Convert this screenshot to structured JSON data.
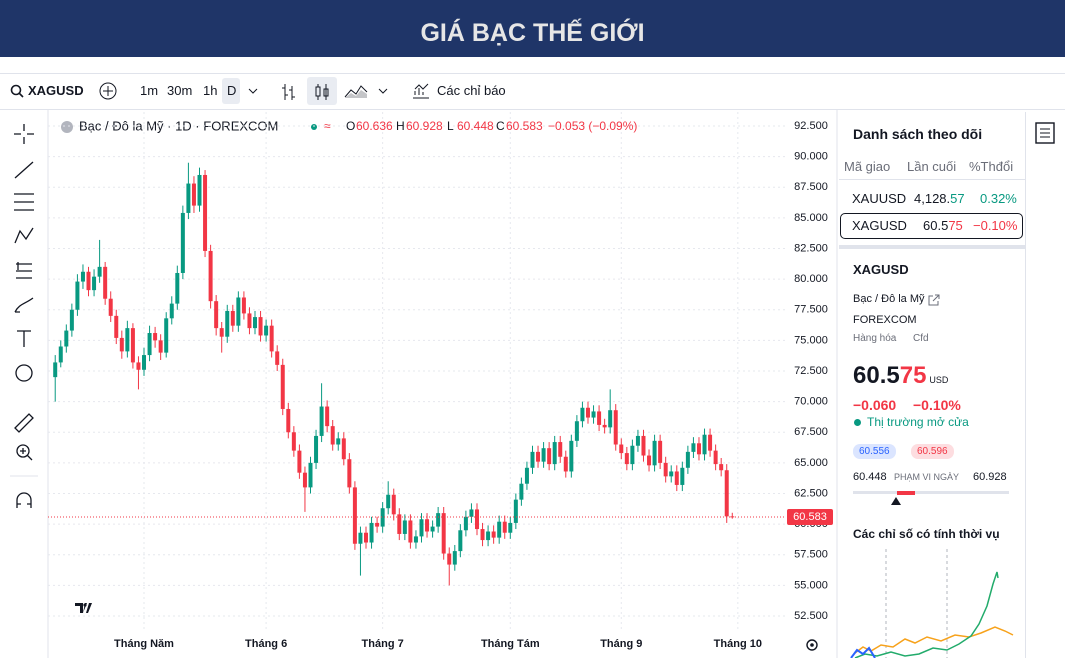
{
  "header": {
    "title": "GIÁ BẠC THẾ GIỚI"
  },
  "toolbar": {
    "symbol": "XAGUSD",
    "intervals": [
      "1m",
      "30m",
      "1h",
      "D"
    ],
    "indicators": "Các chỉ báo"
  },
  "chart_data": {
    "type": "candlestick",
    "title": "Bạc / Đô la Mỹ · 1D · FOREXCOM",
    "ohlc_labels": [
      "O",
      "H",
      "L",
      "C"
    ],
    "change_label": "−0.053 (−0.09%)",
    "up_color": "#089981",
    "down_color": "#f23645",
    "open": [
      72.0,
      73.2,
      74.5,
      75.8,
      77.5,
      79.8,
      80.6,
      79.1,
      80.2,
      81.0,
      78.4,
      77.0,
      75.2,
      74.1,
      76.0,
      73.2,
      72.6,
      73.8,
      75.6,
      75.0,
      74.0,
      76.8,
      78.0,
      80.5,
      85.4,
      87.8,
      86.0,
      88.5,
      82.3,
      78.2,
      76.0,
      75.3,
      77.4,
      76.2,
      78.5,
      77.2,
      76.0,
      76.9,
      75.4,
      76.2,
      74.1,
      73.0,
      69.4,
      67.5,
      66.0,
      64.2,
      63.0,
      65.0,
      67.2,
      69.6,
      68.0,
      66.5,
      67.0,
      65.3,
      63.0,
      58.4,
      59.3,
      58.5,
      60.1,
      59.8,
      61.3,
      62.4,
      60.8,
      59.2,
      60.3,
      58.5,
      59.0,
      60.4,
      59.4,
      59.8,
      60.9,
      57.6,
      56.7,
      57.8,
      59.5,
      60.6,
      61.2,
      59.6,
      58.7,
      59.4,
      58.9,
      60.2,
      59.3,
      60.1,
      62.0,
      63.3,
      64.6,
      65.9,
      65.1,
      66.2,
      64.9,
      66.7,
      65.5,
      64.3,
      66.8,
      68.4,
      69.5,
      68.7,
      69.2,
      68.1,
      67.9,
      69.3,
      66.5,
      65.8,
      64.9,
      66.4,
      67.2,
      65.6,
      64.8,
      66.8,
      65.0,
      63.9,
      64.3,
      63.2,
      64.6,
      65.9,
      66.6,
      65.7,
      67.3,
      66.0,
      64.9,
      64.4,
      60.636
    ],
    "high": [
      73.8,
      75.0,
      76.3,
      78.0,
      80.4,
      81.2,
      81.0,
      80.8,
      83.2,
      81.4,
      79.0,
      77.5,
      75.8,
      76.6,
      76.4,
      73.7,
      74.4,
      76.2,
      76.1,
      75.5,
      77.3,
      78.6,
      81.1,
      86.0,
      89.5,
      88.4,
      89.1,
      88.9,
      82.8,
      78.7,
      76.5,
      77.9,
      77.9,
      79.0,
      79.0,
      77.7,
      77.4,
      77.4,
      76.7,
      76.7,
      74.6,
      73.5,
      69.9,
      68.0,
      66.5,
      64.7,
      65.5,
      67.7,
      71.5,
      70.1,
      68.5,
      67.5,
      67.5,
      65.8,
      63.5,
      59.8,
      59.8,
      60.6,
      60.6,
      61.8,
      63.5,
      62.9,
      61.3,
      60.8,
      60.8,
      59.5,
      60.9,
      60.9,
      60.3,
      61.4,
      61.4,
      58.1,
      58.3,
      60.0,
      61.1,
      61.7,
      61.7,
      60.1,
      59.9,
      59.9,
      60.7,
      60.7,
      60.6,
      62.5,
      63.8,
      65.1,
      66.4,
      66.4,
      66.7,
      66.7,
      67.2,
      67.2,
      66.0,
      67.3,
      68.9,
      70.0,
      70.0,
      69.7,
      69.7,
      68.6,
      71.0,
      69.8,
      67.0,
      66.3,
      66.9,
      67.7,
      67.7,
      66.1,
      67.3,
      67.3,
      65.5,
      64.8,
      64.8,
      65.1,
      66.4,
      67.1,
      67.1,
      67.8,
      67.8,
      66.5,
      65.4,
      64.9,
      60.928
    ],
    "low": [
      70.0,
      72.8,
      74.0,
      75.3,
      77.0,
      79.2,
      78.6,
      78.6,
      79.7,
      77.9,
      76.5,
      74.7,
      73.5,
      73.6,
      72.7,
      71.0,
      72.1,
      73.3,
      74.4,
      73.4,
      73.6,
      76.3,
      77.5,
      80.0,
      84.9,
      85.4,
      85.5,
      81.8,
      77.6,
      75.4,
      74.0,
      74.8,
      75.7,
      75.7,
      76.7,
      75.5,
      75.5,
      74.9,
      74.9,
      73.6,
      72.5,
      68.9,
      67.0,
      65.5,
      63.7,
      61.0,
      62.5,
      64.5,
      66.7,
      67.5,
      66.0,
      66.0,
      64.8,
      62.5,
      57.9,
      55.8,
      58.0,
      58.0,
      59.3,
      59.3,
      60.8,
      60.3,
      58.7,
      58.7,
      58.0,
      58.0,
      58.5,
      58.9,
      58.9,
      59.3,
      57.1,
      55.0,
      56.2,
      57.3,
      59.0,
      60.1,
      59.1,
      58.2,
      58.2,
      58.4,
      58.4,
      58.8,
      58.8,
      59.6,
      61.5,
      62.8,
      64.1,
      64.6,
      64.6,
      64.4,
      64.4,
      65.0,
      63.8,
      63.8,
      66.3,
      67.9,
      68.2,
      68.2,
      67.6,
      67.4,
      67.4,
      66.0,
      65.3,
      64.4,
      64.4,
      65.9,
      65.1,
      64.3,
      64.3,
      64.5,
      63.4,
      63.4,
      62.7,
      62.7,
      64.1,
      65.4,
      65.2,
      65.2,
      65.5,
      64.4,
      63.9,
      60.1,
      60.448
    ],
    "close": [
      73.2,
      74.5,
      75.8,
      77.5,
      79.8,
      80.6,
      79.1,
      80.2,
      81.0,
      78.4,
      77.0,
      75.2,
      74.1,
      76.0,
      73.2,
      72.6,
      73.8,
      75.6,
      75.0,
      74.0,
      76.8,
      78.0,
      80.5,
      85.4,
      87.8,
      86.0,
      88.5,
      82.3,
      78.2,
      76.0,
      75.3,
      77.4,
      76.2,
      78.5,
      77.2,
      76.0,
      76.9,
      75.4,
      76.2,
      74.1,
      73.0,
      69.4,
      67.5,
      66.0,
      64.2,
      63.0,
      65.0,
      67.2,
      69.6,
      68.0,
      66.5,
      67.0,
      65.3,
      63.0,
      58.4,
      59.3,
      58.5,
      60.1,
      59.8,
      61.3,
      62.4,
      60.8,
      59.2,
      60.3,
      58.5,
      59.0,
      60.4,
      59.4,
      59.8,
      60.9,
      57.6,
      56.7,
      57.8,
      59.5,
      60.6,
      61.2,
      59.6,
      58.7,
      59.4,
      58.9,
      60.2,
      59.3,
      60.1,
      62.0,
      63.3,
      64.6,
      65.9,
      65.1,
      66.2,
      64.9,
      66.7,
      65.5,
      64.3,
      66.8,
      68.4,
      69.5,
      68.7,
      69.2,
      68.1,
      67.9,
      69.3,
      66.5,
      65.8,
      64.9,
      66.4,
      67.2,
      65.6,
      64.8,
      66.8,
      65.0,
      63.9,
      64.3,
      63.2,
      64.6,
      65.9,
      66.6,
      65.7,
      67.3,
      66.0,
      64.9,
      64.4,
      60.636,
      60.583
    ],
    "xlim": [
      -1.3,
      131.5
    ],
    "xticks": [
      {
        "value": 16,
        "label": "Tháng Năm"
      },
      {
        "value": 38,
        "label": "Tháng 6"
      },
      {
        "value": 59,
        "label": "Tháng 7"
      },
      {
        "value": 82,
        "label": "Tháng Tám"
      },
      {
        "value": 102,
        "label": "Tháng 9"
      },
      {
        "value": 123,
        "label": "Tháng 10"
      }
    ],
    "ylim": [
      51.36,
      93.64
    ],
    "yticks": [
      {
        "value": 52.5,
        "label": "52.500"
      },
      {
        "value": 55,
        "label": "55.000"
      },
      {
        "value": 57.5,
        "label": "57.500"
      },
      {
        "value": 60,
        "label": "60.000"
      },
      {
        "value": 62.5,
        "label": "62.500"
      },
      {
        "value": 65,
        "label": "65.000"
      },
      {
        "value": 67.5,
        "label": "67.500"
      },
      {
        "value": 70,
        "label": "70.000"
      },
      {
        "value": 72.5,
        "label": "72.500"
      },
      {
        "value": 75,
        "label": "75.000"
      },
      {
        "value": 77.5,
        "label": "77.500"
      },
      {
        "value": 80,
        "label": "80.000"
      },
      {
        "value": 82.5,
        "label": "82.500"
      },
      {
        "value": 85,
        "label": "85.000"
      },
      {
        "value": 87.5,
        "label": "87.500"
      },
      {
        "value": 90,
        "label": "90.000"
      },
      {
        "value": 92.5,
        "label": "92.500"
      }
    ],
    "grid": true
  },
  "watchlist": {
    "title": "Danh sách theo dõi",
    "columns": [
      "Mã giao",
      "Lần cuối",
      "%Thđổi"
    ],
    "rows": [
      {
        "symbol": "XAUUSD",
        "price_main": "4,128.",
        "price_tail": "57",
        "change": "0.32%"
      },
      {
        "symbol": "XAGUSD",
        "price_main": "60.5",
        "price_tail": "75",
        "change": "−0.10%"
      }
    ]
  },
  "details": {
    "symbol": "XAGUSD",
    "name": "Bạc / Đô la Mỹ",
    "exchange": "FOREXCOM",
    "category": "Hàng hóa",
    "kind": "Cfd",
    "price_main": "60.5",
    "price_tail": "75",
    "currency": "USD",
    "change": "−0.060",
    "change_pct": "−0.10%",
    "status": "Thị trường mở cửa",
    "bid": "60.556",
    "ask": "60.596",
    "range_low": "60.448",
    "range_label": "PHẠM VI NGÀY",
    "range_high": "60.928",
    "seasonal_title": "Các chỉ số có tính thời vụ"
  }
}
